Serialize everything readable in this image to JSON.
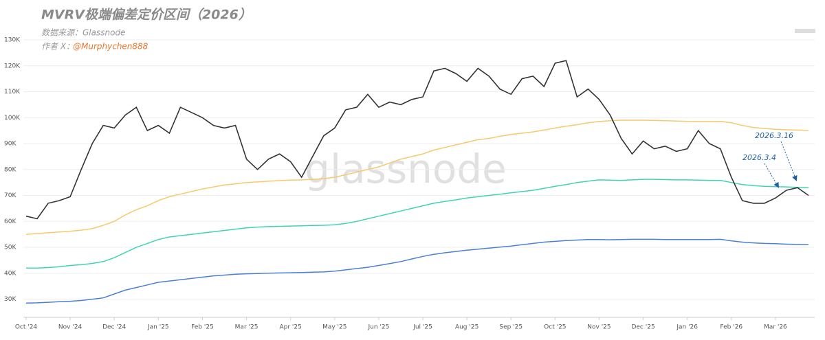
{
  "chart_data": {
    "type": "line",
    "title": "MVRV极端偏差定价区间（2026）",
    "subtitle": "数据来源：Glassnode",
    "author_label": "作者 X：",
    "author_handle": "@Murphychen888",
    "watermark": "glassnode",
    "categories": [
      "Oct '24",
      null,
      null,
      null,
      "Nov '24",
      null,
      null,
      null,
      "Dec '24",
      null,
      null,
      null,
      "Jan '25",
      null,
      null,
      null,
      "Feb '25",
      null,
      null,
      null,
      "Mar '25",
      null,
      null,
      null,
      "Apr '25",
      null,
      null,
      null,
      "May '25",
      null,
      null,
      null,
      "Jun '25",
      null,
      null,
      null,
      "Jul '25",
      null,
      null,
      null,
      "Aug '25",
      null,
      null,
      null,
      "Sep '25",
      null,
      null,
      null,
      "Oct '25",
      null,
      null,
      null,
      "Nov '25",
      null,
      null,
      null,
      "Dec '25",
      null,
      null,
      null,
      "Jan '26",
      null,
      null,
      null,
      "Feb '26",
      null,
      null,
      null,
      "Mar '26",
      null,
      null,
      null
    ],
    "ylim": [
      23000,
      130000
    ],
    "yticks": [
      {
        "value": 30000,
        "label": "30K"
      },
      {
        "value": 40000,
        "label": "40K"
      },
      {
        "value": 50000,
        "label": "50K"
      },
      {
        "value": 60000,
        "label": "60K"
      },
      {
        "value": 70000,
        "label": "70K"
      },
      {
        "value": 80000,
        "label": "80K"
      },
      {
        "value": 90000,
        "label": "90K"
      },
      {
        "value": 100000,
        "label": "100K"
      },
      {
        "value": 110000,
        "label": "110K"
      },
      {
        "value": 120000,
        "label": "120K"
      },
      {
        "value": 130000,
        "label": "130K"
      }
    ],
    "grid": true,
    "series": [
      {
        "color": "#f7c96a",
        "values": [
          55000,
          55300,
          55600,
          55900,
          56200,
          56600,
          57200,
          58500,
          60000,
          62500,
          64500,
          66000,
          68000,
          69500,
          70500,
          71500,
          72500,
          73300,
          74000,
          74500,
          75000,
          75200,
          75500,
          75700,
          75900,
          76000,
          76200,
          76500,
          77000,
          78000,
          79000,
          80000,
          81000,
          82500,
          84000,
          85000,
          86000,
          87500,
          88500,
          89500,
          90500,
          91500,
          92000,
          92800,
          93500,
          94000,
          94500,
          95200,
          96000,
          96700,
          97300,
          98000,
          98500,
          98800,
          99000,
          99000,
          99000,
          98900,
          98800,
          98700,
          98600,
          98500,
          98500,
          98600,
          98000,
          97000,
          96200,
          95800,
          95500,
          95300,
          95200,
          95100
        ]
      },
      {
        "color": "#3fd4b0",
        "values": [
          42000,
          42000,
          42200,
          42500,
          43000,
          43300,
          43800,
          44500,
          46000,
          48000,
          50000,
          51500,
          53000,
          54000,
          54500,
          55000,
          55500,
          56000,
          56500,
          57000,
          57500,
          57800,
          58000,
          58100,
          58200,
          58300,
          58400,
          58500,
          58700,
          59200,
          60000,
          61000,
          62000,
          63000,
          64000,
          65000,
          66000,
          67000,
          67700,
          68300,
          69000,
          69500,
          70000,
          70500,
          71000,
          71500,
          72000,
          72700,
          73500,
          74200,
          75000,
          75500,
          76000,
          75900,
          75800,
          76000,
          76200,
          76200,
          76100,
          76000,
          76000,
          75900,
          75800,
          75800,
          75000,
          74200,
          73800,
          73500,
          73400,
          73300,
          73100,
          73000
        ]
      },
      {
        "color": "#4a7fd6",
        "values": [
          28500,
          28600,
          28800,
          29000,
          29200,
          29500,
          30000,
          30500,
          32000,
          33500,
          34500,
          35500,
          36500,
          37000,
          37500,
          38000,
          38500,
          39000,
          39300,
          39600,
          39800,
          39900,
          40000,
          40100,
          40200,
          40300,
          40400,
          40500,
          40800,
          41300,
          41800,
          42300,
          43000,
          43700,
          44500,
          45500,
          46500,
          47300,
          47900,
          48400,
          48900,
          49300,
          49700,
          50100,
          50500,
          51000,
          51500,
          52000,
          52300,
          52600,
          52800,
          53000,
          53000,
          52900,
          53000,
          53100,
          53100,
          53100,
          53000,
          53000,
          53000,
          53000,
          53000,
          53100,
          52500,
          52000,
          51700,
          51500,
          51400,
          51200,
          51100,
          51000
        ]
      },
      {
        "color": "#333333",
        "values": [
          62000,
          61000,
          67000,
          68000,
          69500,
          80000,
          90000,
          97000,
          96000,
          101000,
          104000,
          95000,
          97000,
          94000,
          104000,
          102000,
          100000,
          97000,
          96000,
          97000,
          84000,
          80000,
          84000,
          86000,
          83000,
          77000,
          85000,
          93000,
          96000,
          103000,
          104000,
          109000,
          104000,
          106000,
          105000,
          107000,
          108000,
          118000,
          119000,
          117000,
          114000,
          119000,
          116000,
          111000,
          109000,
          115000,
          116000,
          112000,
          121000,
          122000,
          108000,
          111000,
          107000,
          101000,
          92000,
          86000,
          91000,
          88000,
          89000,
          87000,
          88000,
          95000,
          90000,
          88000,
          77000,
          68000,
          67000,
          67000,
          69000,
          72000,
          73000,
          70000
        ]
      }
    ],
    "annotations": [
      {
        "text": "2026.3.4"
      },
      {
        "text": "2026.3.16"
      }
    ]
  }
}
